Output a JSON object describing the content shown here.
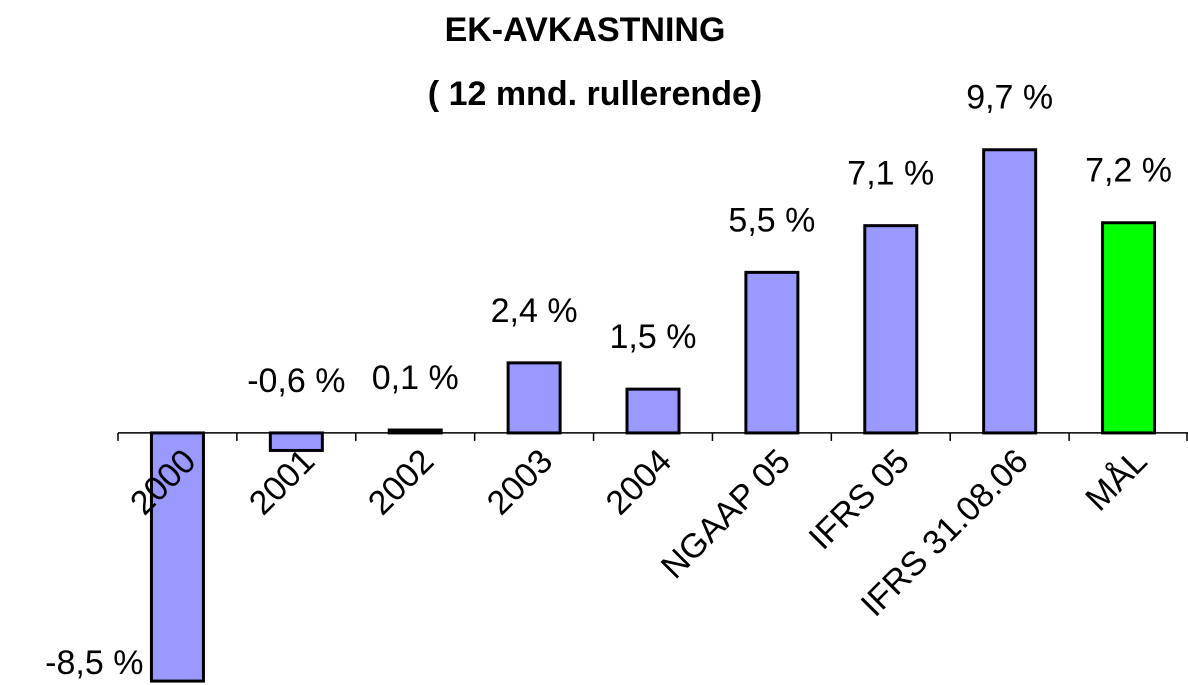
{
  "chart_data": {
    "type": "bar",
    "title": "EK-AVKASTNING",
    "subtitle": "( 12 mnd. rullerende)",
    "categories": [
      "2000",
      "2001",
      "2002",
      "2003",
      "2004",
      "NGAAP 05",
      "IFRS 05",
      "IFRS 31.08.06",
      "MÅL"
    ],
    "values": [
      -8.5,
      -0.6,
      0.1,
      2.4,
      1.5,
      5.5,
      7.1,
      9.7,
      7.2
    ],
    "value_labels": [
      "-8,5 %",
      "-0,6 %",
      "0,1 %",
      "2,4 %",
      "1,5 %",
      "5,5 %",
      "7,1 %",
      "9,7 %",
      "7,2 %"
    ],
    "colors": [
      "#9999ff",
      "#9999ff",
      "#9999ff",
      "#9999ff",
      "#9999ff",
      "#9999ff",
      "#9999ff",
      "#9999ff",
      "#00ff00"
    ],
    "ylim": [
      -8.6,
      10
    ]
  }
}
